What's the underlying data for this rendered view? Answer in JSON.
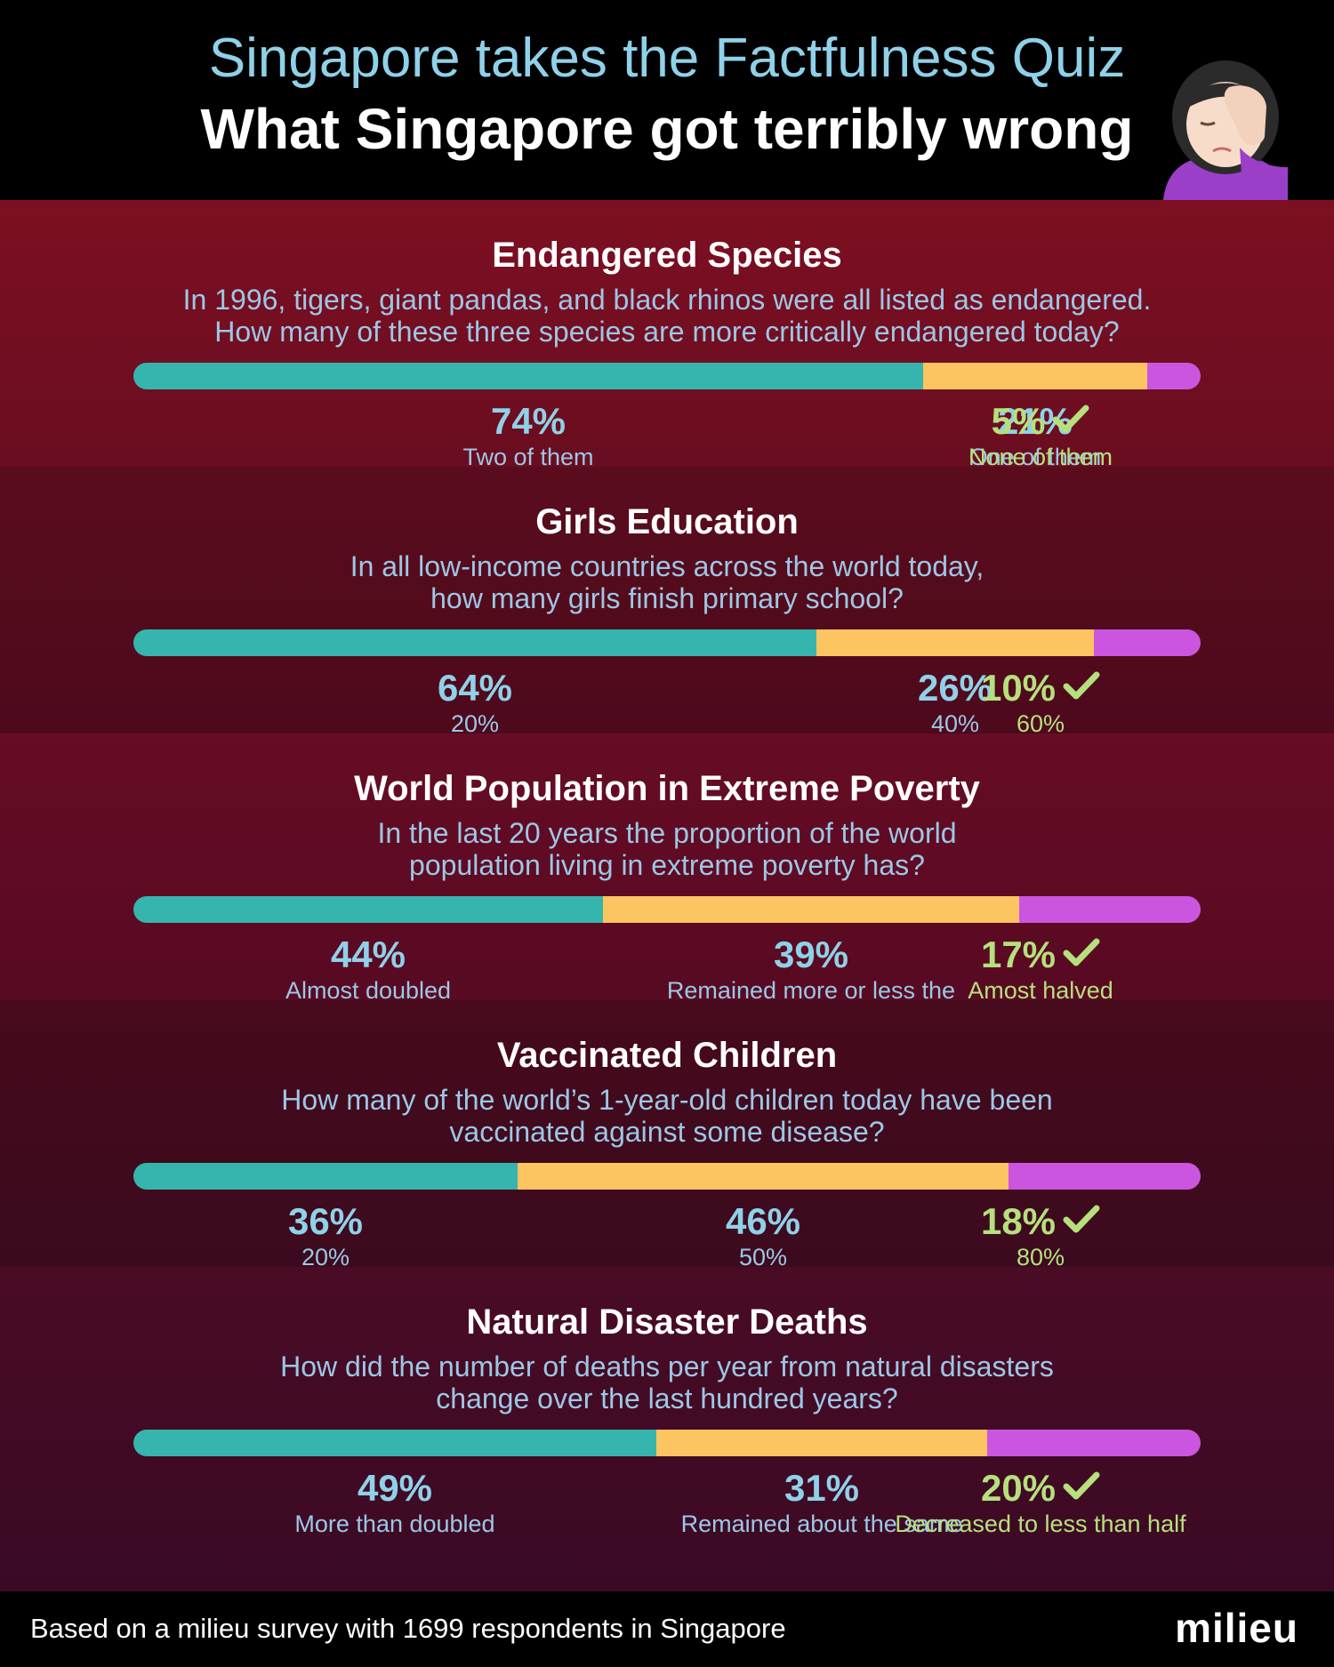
{
  "header": {
    "title": "Singapore takes the Factfulness Quiz",
    "subtitle": "What Singapore got terribly wrong",
    "emoji_icon": "face-palm-icon"
  },
  "colors": {
    "segment_1": "#35b5ad",
    "segment_2": "#fdc462",
    "segment_3": "#cc55e0",
    "correct": "#b6e07d",
    "percent_text": "#8fd1e8"
  },
  "chart_data": [
    {
      "type": "bar",
      "stacked": true,
      "orientation": "horizontal",
      "title": "Endangered Species",
      "question": "In 1996, tigers, giant pandas, and black rhinos were all listed as endangered.\nHow many of these three species are more critically endangered today?",
      "segments": [
        {
          "label": "Two of them",
          "value": 74,
          "value_label": "74%",
          "correct": false
        },
        {
          "label": "One of them",
          "value": 21,
          "value_label": "21%",
          "correct": false
        },
        {
          "label": "None of them",
          "value": 5,
          "value_label": "5%",
          "correct": true
        }
      ]
    },
    {
      "type": "bar",
      "stacked": true,
      "orientation": "horizontal",
      "title": "Girls Education",
      "question": "In all low-income countries across the world today,\nhow many girls finish primary school?",
      "segments": [
        {
          "label": "20%",
          "value": 64,
          "value_label": "64%",
          "correct": false
        },
        {
          "label": "40%",
          "value": 26,
          "value_label": "26%",
          "correct": false
        },
        {
          "label": "60%",
          "value": 10,
          "value_label": "10%",
          "correct": true
        }
      ]
    },
    {
      "type": "bar",
      "stacked": true,
      "orientation": "horizontal",
      "title": "World Population in Extreme Poverty",
      "question": "In the last 20 years the proportion of the world\npopulation living in extreme poverty has?",
      "segments": [
        {
          "label": "Almost doubled",
          "value": 44,
          "value_label": "44%",
          "correct": false
        },
        {
          "label": "Remained more or less the same",
          "value": 39,
          "value_label": "39%",
          "correct": false
        },
        {
          "label": "Amost halved",
          "value": 17,
          "value_label": "17%",
          "correct": true
        }
      ]
    },
    {
      "type": "bar",
      "stacked": true,
      "orientation": "horizontal",
      "title": "Vaccinated Children",
      "question": "How many of the world’s 1-year-old children today have been\nvaccinated against some disease?",
      "segments": [
        {
          "label": "20%",
          "value": 36,
          "value_label": "36%",
          "correct": false
        },
        {
          "label": "50%",
          "value": 46,
          "value_label": "46%",
          "correct": false
        },
        {
          "label": "80%",
          "value": 18,
          "value_label": "18%",
          "correct": true
        }
      ]
    },
    {
      "type": "bar",
      "stacked": true,
      "orientation": "horizontal",
      "title": "Natural Disaster Deaths",
      "question": "How did the number of deaths per year from natural disasters\nchange over the last hundred years?",
      "segments": [
        {
          "label": "More than doubled",
          "value": 49,
          "value_label": "49%",
          "correct": false
        },
        {
          "label": "Remained about the same",
          "value": 31,
          "value_label": "31%",
          "correct": false
        },
        {
          "label": "Decreased to less than half",
          "value": 20,
          "value_label": "20%",
          "correct": true
        }
      ]
    }
  ],
  "footer": {
    "note": "Based on a milieu survey with 1699 respondents in Singapore",
    "logo": "milieu"
  }
}
